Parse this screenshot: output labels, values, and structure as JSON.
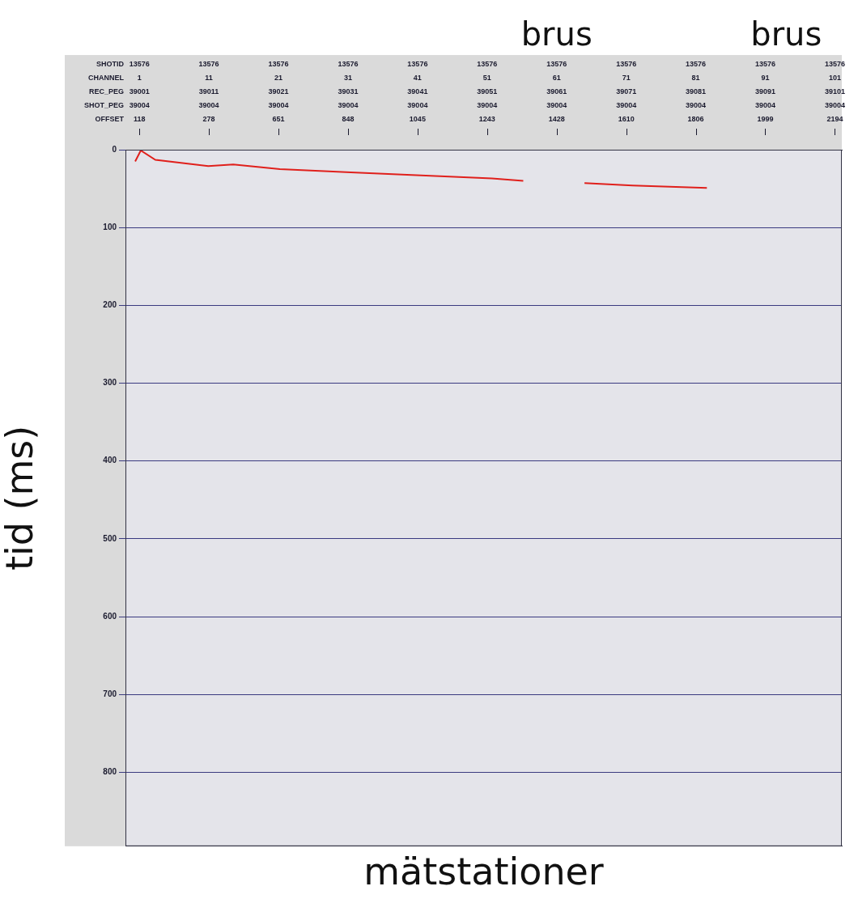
{
  "chart_data": {
    "type": "line",
    "xlabel": "mätstationer",
    "ylabel": "tid (ms)",
    "x": [
      0.4,
      1.2,
      3.3,
      10.9,
      14.5,
      21.2,
      31.4,
      41.5,
      51.7,
      56.2,
      60,
      65.0,
      71.9,
      82.6
    ],
    "values": [
      15,
      1,
      13,
      21,
      19,
      25,
      29,
      33,
      37,
      40,
      null,
      43,
      46,
      49
    ],
    "color": "#e0201c",
    "xlim": [
      -1,
      102
    ],
    "xticks": [
      1,
      11,
      21,
      31,
      41,
      51,
      61,
      71,
      81,
      91,
      101
    ],
    "ylim": [
      0,
      895
    ],
    "yticks": [
      0,
      100,
      200,
      300,
      400,
      500,
      600,
      700,
      800
    ],
    "grid": true,
    "header": [
      {
        "label": "SHOTID",
        "values": [
          13576,
          13576,
          13576,
          13576,
          13576,
          13576,
          13576,
          13576,
          13576,
          13576,
          13576
        ]
      },
      {
        "label": "CHANNEL",
        "values": [
          1,
          11,
          21,
          31,
          41,
          51,
          61,
          71,
          81,
          91,
          101
        ]
      },
      {
        "label": "REC_PEG",
        "values": [
          39001,
          39011,
          39021,
          39031,
          39041,
          39051,
          39061,
          39071,
          39081,
          39091,
          39101
        ]
      },
      {
        "label": "SHOT_PEG",
        "values": [
          39004,
          39004,
          39004,
          39004,
          39004,
          39004,
          39004,
          39004,
          39004,
          39004,
          39004
        ]
      },
      {
        "label": "OFFSET",
        "values": [
          118,
          278,
          651,
          848,
          1045,
          1243,
          1428,
          1610,
          1806,
          1999,
          2194
        ]
      }
    ],
    "annotations": [
      {
        "text": "brus",
        "x": 61
      },
      {
        "text": "brus",
        "x": 94
      }
    ]
  }
}
